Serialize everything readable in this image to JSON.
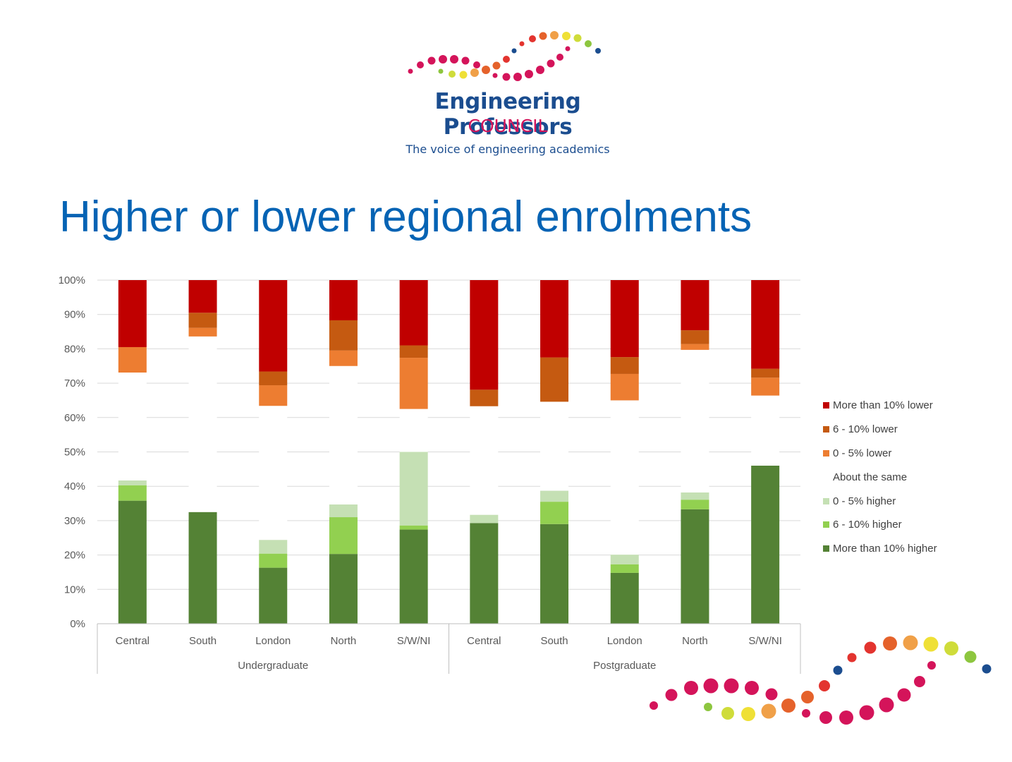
{
  "logo": {
    "line1": "Engineering Professors",
    "line2": "COUNCIL",
    "line3": "The voice of engineering academics"
  },
  "slide": {
    "title": "Higher or lower regional enrolments"
  },
  "colors": {
    "more_than_10_lower": "#c00000",
    "six_10_lower": "#c55a11",
    "zero_5_lower": "#ed7d31",
    "about_same": "#ffffff",
    "zero_5_higher": "#c5e0b4",
    "six_10_higher": "#92d050",
    "more_than_10_higher": "#548235",
    "title": "#0563b4",
    "logo_blue": "#1b4d8f",
    "logo_pink": "#d4145a"
  },
  "chart_data": {
    "type": "bar",
    "stacked": true,
    "groups": [
      {
        "label": "Undergraduate",
        "categories": [
          "Central",
          "South",
          "London",
          "North",
          "S/W/NI"
        ]
      },
      {
        "label": "Postgraduate",
        "categories": [
          "Central",
          "South",
          "London",
          "North",
          "S/W/NI"
        ]
      }
    ],
    "categories": [
      "Central",
      "South",
      "London",
      "North",
      "S/W/NI",
      "Central",
      "South",
      "London",
      "North",
      "S/W/NI"
    ],
    "series": [
      {
        "name": "More than 10% higher",
        "color": "#548235",
        "values": [
          35.8,
          32.5,
          16.3,
          20.3,
          27.4,
          29.3,
          29.0,
          14.8,
          33.3,
          46.0
        ]
      },
      {
        "name": "6 - 10% higher",
        "color": "#92d050",
        "values": [
          4.5,
          0,
          4.1,
          10.7,
          1.2,
          0,
          6.5,
          2.5,
          2.8,
          0
        ]
      },
      {
        "name": "0 - 5% higher",
        "color": "#c5e0b4",
        "values": [
          1.4,
          0,
          4.0,
          3.7,
          21.4,
          2.4,
          3.2,
          2.8,
          2.1,
          0
        ]
      },
      {
        "name": "About the same",
        "color": "#ffffff",
        "values": [
          31.4,
          51.1,
          39.0,
          40.3,
          12.5,
          31.6,
          25.9,
          44.9,
          41.5,
          20.4
        ]
      },
      {
        "name": "0 - 5% lower",
        "color": "#ed7d31",
        "values": [
          7.4,
          2.5,
          6.0,
          4.5,
          14.9,
          0,
          0,
          7.7,
          1.7,
          5.2
        ]
      },
      {
        "name": "6 - 10% lower",
        "color": "#c55a11",
        "values": [
          0,
          4.4,
          4.0,
          8.8,
          3.6,
          4.8,
          12.9,
          4.9,
          4.0,
          2.6
        ]
      },
      {
        "name": "More than 10% lower",
        "color": "#c00000",
        "values": [
          19.5,
          9.5,
          26.6,
          11.7,
          19.0,
          31.9,
          22.5,
          22.4,
          14.6,
          25.8
        ]
      }
    ],
    "yticks": [
      "0%",
      "10%",
      "20%",
      "30%",
      "40%",
      "50%",
      "60%",
      "70%",
      "80%",
      "90%",
      "100%"
    ],
    "ylim": [
      0,
      100
    ],
    "grid": true,
    "legend_position": "right",
    "legend_order": [
      "More than 10% lower",
      "6 - 10% lower",
      "0 - 5% lower",
      "About the same",
      "0 - 5% higher",
      "6 - 10% higher",
      "More than 10% higher"
    ]
  }
}
